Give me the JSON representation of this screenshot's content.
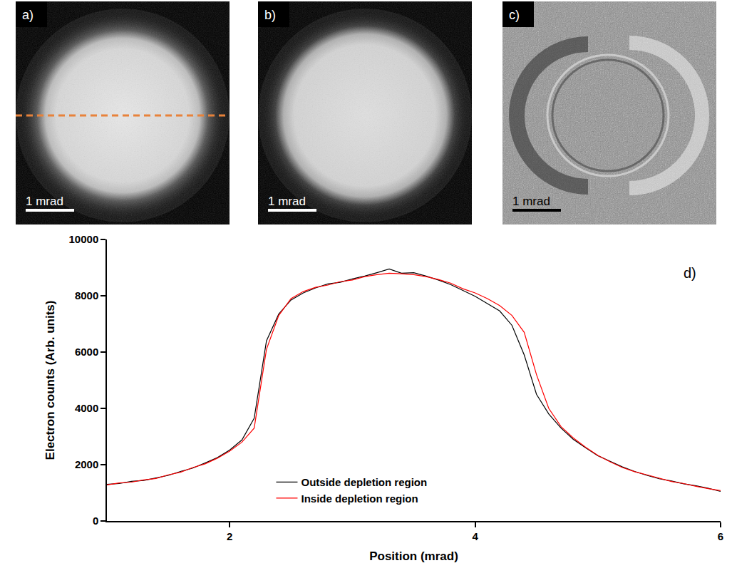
{
  "images": [
    {
      "label": "a)",
      "scale_bar": "1 mrad"
    },
    {
      "label": "b)",
      "scale_bar": "1 mrad"
    },
    {
      "label": "c)",
      "scale_bar": "1 mrad"
    }
  ],
  "chart_data": {
    "type": "line",
    "panel_label": "d)",
    "x_label": "Position (mrad)",
    "y_label": "Electron counts (Arb. units)",
    "x": [
      1.0,
      1.1,
      1.2,
      1.3,
      1.4,
      1.5,
      1.6,
      1.7,
      1.8,
      1.9,
      2.0,
      2.1,
      2.2,
      2.3,
      2.4,
      2.5,
      2.6,
      2.7,
      2.8,
      2.9,
      3.0,
      3.1,
      3.2,
      3.3,
      3.4,
      3.5,
      3.6,
      3.7,
      3.8,
      3.9,
      4.0,
      4.1,
      4.2,
      4.3,
      4.4,
      4.5,
      4.6,
      4.7,
      4.8,
      4.9,
      5.0,
      5.1,
      5.2,
      5.3,
      5.4,
      5.5,
      5.6,
      5.7,
      5.8,
      5.9,
      6.0
    ],
    "series": [
      {
        "name": "Outside depletion region",
        "color": "#000000",
        "values": [
          1300,
          1330,
          1410,
          1440,
          1530,
          1620,
          1760,
          1880,
          2060,
          2250,
          2520,
          2880,
          3650,
          6400,
          7350,
          7850,
          8100,
          8280,
          8420,
          8480,
          8600,
          8700,
          8820,
          8950,
          8800,
          8820,
          8700,
          8560,
          8400,
          8180,
          7980,
          7720,
          7460,
          6950,
          5900,
          4500,
          3800,
          3300,
          2900,
          2600,
          2320,
          2120,
          1920,
          1760,
          1620,
          1500,
          1420,
          1320,
          1250,
          1160,
          1050
        ]
      },
      {
        "name": "Inside depletion region",
        "color": "#ff0000",
        "values": [
          1280,
          1350,
          1380,
          1460,
          1510,
          1640,
          1730,
          1900,
          2030,
          2230,
          2480,
          2800,
          3300,
          6100,
          7300,
          7900,
          8150,
          8300,
          8380,
          8500,
          8560,
          8680,
          8750,
          8800,
          8780,
          8750,
          8680,
          8580,
          8450,
          8250,
          8100,
          7900,
          7650,
          7300,
          6700,
          5200,
          4000,
          3350,
          2950,
          2620,
          2330,
          2100,
          1900,
          1750,
          1640,
          1520,
          1400,
          1330,
          1230,
          1150,
          1080
        ]
      }
    ],
    "xlim": [
      1,
      6
    ],
    "xticks": [
      2,
      4,
      6
    ],
    "ylim": [
      0,
      10000
    ],
    "yticks": [
      0,
      2000,
      4000,
      6000,
      8000,
      10000
    ],
    "grid": false,
    "legend": "lower center"
  }
}
